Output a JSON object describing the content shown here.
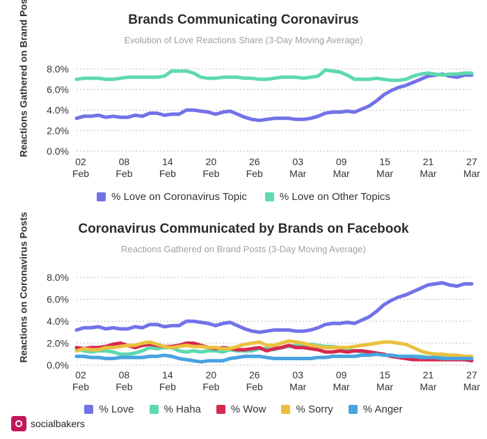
{
  "chart_data": [
    {
      "type": "line",
      "title": "Brands Communicating Coronavirus",
      "subtitle": "Evolution of Love Reactions Share (3-Day Moving Average)",
      "ylabel": "Reactions Gathered on Brand Posts",
      "ylim": [
        0,
        8
      ],
      "y_ticks": [
        "0.0%",
        "2.0%",
        "4.0%",
        "6.0%",
        "8.0%"
      ],
      "y_tick_values": [
        0,
        2,
        4,
        6,
        8
      ],
      "x_ticks": [
        {
          "day": "02",
          "month": "Feb"
        },
        {
          "day": "08",
          "month": "Feb"
        },
        {
          "day": "14",
          "month": "Feb"
        },
        {
          "day": "20",
          "month": "Feb"
        },
        {
          "day": "26",
          "month": "Feb"
        },
        {
          "day": "03",
          "month": "Mar"
        },
        {
          "day": "09",
          "month": "Mar"
        },
        {
          "day": "15",
          "month": "Mar"
        },
        {
          "day": "21",
          "month": "Mar"
        },
        {
          "day": "27",
          "month": "Mar"
        }
      ],
      "grid": "horizontal-dotted",
      "series": [
        {
          "name": "% Love on Coronavirus Topic",
          "color": "#7272e8",
          "values": [
            3.2,
            3.4,
            3.4,
            3.5,
            3.3,
            3.4,
            3.3,
            3.3,
            3.5,
            3.4,
            3.7,
            3.7,
            3.5,
            3.6,
            3.6,
            4.0,
            4.0,
            3.9,
            3.8,
            3.6,
            3.8,
            3.9,
            3.6,
            3.3,
            3.1,
            3.0,
            3.1,
            3.2,
            3.2,
            3.2,
            3.1,
            3.1,
            3.2,
            3.4,
            3.7,
            3.8,
            3.8,
            3.9,
            3.8,
            4.1,
            4.4,
            4.9,
            5.5,
            5.9,
            6.2,
            6.4,
            6.7,
            7.0,
            7.3,
            7.4,
            7.5,
            7.3,
            7.2,
            7.4,
            7.4
          ]
        },
        {
          "name": "% Love on Other Topics",
          "color": "#5ed9b0",
          "values": [
            7.0,
            7.1,
            7.1,
            7.1,
            7.0,
            7.0,
            7.1,
            7.2,
            7.2,
            7.2,
            7.2,
            7.2,
            7.3,
            7.8,
            7.8,
            7.8,
            7.6,
            7.2,
            7.1,
            7.1,
            7.2,
            7.2,
            7.2,
            7.1,
            7.1,
            7.0,
            7.0,
            7.1,
            7.2,
            7.2,
            7.2,
            7.1,
            7.2,
            7.3,
            7.9,
            7.8,
            7.7,
            7.4,
            7.0,
            7.0,
            7.0,
            7.1,
            7.0,
            6.9,
            6.9,
            7.0,
            7.3,
            7.5,
            7.6,
            7.5,
            7.4,
            7.5,
            7.5,
            7.6,
            7.6
          ]
        }
      ]
    },
    {
      "type": "line",
      "title": "Coronavirus Communicated by Brands on Facebook",
      "subtitle": "Reactions Gathered on Brand Posts (3-Day Moving Average)",
      "ylabel": "Reactions on Coronavirus Posts",
      "ylim": [
        0,
        8
      ],
      "y_ticks": [
        "0.0%",
        "2.0%",
        "4.0%",
        "6.0%",
        "8.0%"
      ],
      "y_tick_values": [
        0,
        2,
        4,
        6,
        8
      ],
      "x_ticks": [
        {
          "day": "02",
          "month": "Feb"
        },
        {
          "day": "08",
          "month": "Feb"
        },
        {
          "day": "14",
          "month": "Feb"
        },
        {
          "day": "20",
          "month": "Feb"
        },
        {
          "day": "26",
          "month": "Feb"
        },
        {
          "day": "03",
          "month": "Mar"
        },
        {
          "day": "09",
          "month": "Mar"
        },
        {
          "day": "15",
          "month": "Mar"
        },
        {
          "day": "21",
          "month": "Mar"
        },
        {
          "day": "27",
          "month": "Mar"
        }
      ],
      "grid": "horizontal-dotted",
      "series": [
        {
          "name": "% Love",
          "color": "#7272e8",
          "values": [
            3.2,
            3.4,
            3.4,
            3.5,
            3.3,
            3.4,
            3.3,
            3.3,
            3.5,
            3.4,
            3.7,
            3.7,
            3.5,
            3.6,
            3.6,
            4.0,
            4.0,
            3.9,
            3.8,
            3.6,
            3.8,
            3.9,
            3.6,
            3.3,
            3.1,
            3.0,
            3.1,
            3.2,
            3.2,
            3.2,
            3.1,
            3.1,
            3.2,
            3.4,
            3.7,
            3.8,
            3.8,
            3.9,
            3.8,
            4.1,
            4.4,
            4.9,
            5.5,
            5.9,
            6.2,
            6.4,
            6.7,
            7.0,
            7.3,
            7.4,
            7.5,
            7.3,
            7.2,
            7.4,
            7.4
          ]
        },
        {
          "name": "% Haha",
          "color": "#5ed9b0",
          "values": [
            1.5,
            1.3,
            1.2,
            1.3,
            1.3,
            1.2,
            1.0,
            1.0,
            1.1,
            1.3,
            1.6,
            1.5,
            1.6,
            1.6,
            1.3,
            1.2,
            1.3,
            1.2,
            1.3,
            1.3,
            1.2,
            1.4,
            1.3,
            1.3,
            1.3,
            1.5,
            1.5,
            1.4,
            1.6,
            1.7,
            1.8,
            1.8,
            1.9,
            1.8,
            1.7,
            1.7,
            1.6,
            1.4,
            1.3,
            1.2,
            1.1,
            1.0,
            0.9,
            0.9,
            0.8,
            0.8,
            0.8,
            0.8,
            0.7,
            0.7,
            0.7,
            0.7,
            0.7,
            0.7,
            0.7
          ]
        },
        {
          "name": "% Wow",
          "color": "#d6294f",
          "values": [
            1.6,
            1.5,
            1.6,
            1.6,
            1.7,
            1.9,
            2.0,
            1.8,
            1.6,
            1.8,
            1.9,
            1.8,
            1.7,
            1.7,
            1.8,
            2.0,
            2.0,
            1.8,
            1.6,
            1.5,
            1.6,
            1.5,
            1.4,
            1.4,
            1.5,
            1.6,
            1.3,
            1.5,
            1.6,
            1.8,
            1.6,
            1.6,
            1.5,
            1.4,
            1.2,
            1.2,
            1.3,
            1.2,
            1.3,
            1.3,
            1.2,
            1.1,
            1.0,
            0.8,
            0.7,
            0.6,
            0.5,
            0.5,
            0.5,
            0.5,
            0.5,
            0.5,
            0.5,
            0.5,
            0.4
          ]
        },
        {
          "name": "% Sorry",
          "color": "#ebc03f",
          "values": [
            1.3,
            1.5,
            1.4,
            1.4,
            1.6,
            1.6,
            1.7,
            1.8,
            1.8,
            2.0,
            2.1,
            1.9,
            1.7,
            1.6,
            1.7,
            1.8,
            1.7,
            1.7,
            1.6,
            1.6,
            1.5,
            1.5,
            1.7,
            1.9,
            2.0,
            2.1,
            1.8,
            1.8,
            2.0,
            2.2,
            2.1,
            2.0,
            1.8,
            1.7,
            1.6,
            1.6,
            1.6,
            1.6,
            1.7,
            1.8,
            1.9,
            2.0,
            2.1,
            2.1,
            2.0,
            1.9,
            1.6,
            1.3,
            1.1,
            1.0,
            1.0,
            0.9,
            0.9,
            0.8,
            0.8
          ]
        },
        {
          "name": "% Anger",
          "color": "#4aa3df",
          "values": [
            0.8,
            0.8,
            0.7,
            0.7,
            0.6,
            0.6,
            0.7,
            0.7,
            0.7,
            0.7,
            0.8,
            0.8,
            0.9,
            0.8,
            0.6,
            0.5,
            0.4,
            0.3,
            0.4,
            0.4,
            0.4,
            0.6,
            0.7,
            0.8,
            0.8,
            0.8,
            0.7,
            0.6,
            0.6,
            0.6,
            0.6,
            0.6,
            0.6,
            0.7,
            0.7,
            0.8,
            0.8,
            0.8,
            0.8,
            0.9,
            0.9,
            1.0,
            0.9,
            0.9,
            0.8,
            0.8,
            0.8,
            0.7,
            0.7,
            0.7,
            0.6,
            0.6,
            0.6,
            0.6,
            0.6
          ]
        }
      ]
    }
  ],
  "footer": {
    "brand": "socialbakers"
  }
}
